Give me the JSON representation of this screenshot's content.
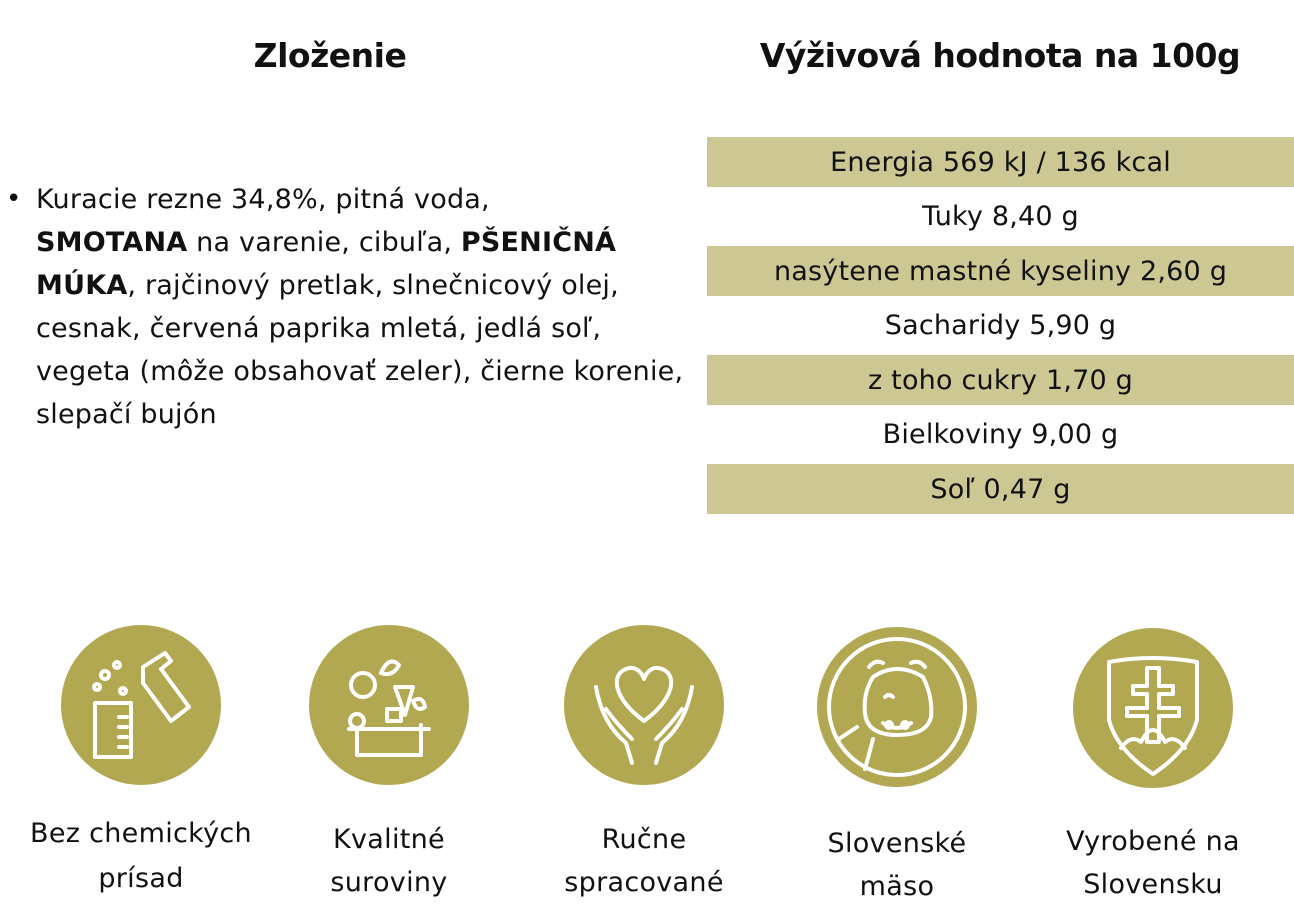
{
  "composition": {
    "title": "Zloženie",
    "parts": [
      "Kuracie rezne 34,8%, pitná voda,",
      " SMOTANA",
      " na varenie, cibuľa, ",
      "PŠENIČNÁ MÚKA",
      ", rajčinový pretlak, slnečnicový olej, cesnak, červená paprika mletá, jedlá soľ, vegeta (môže obsahovať zeler), čierne korenie, slepačí bujón"
    ]
  },
  "nutrition": {
    "title": "Výživová hodnota na 100g",
    "rows": [
      "Energia 569 kJ / 136 kcal",
      "Tuky 8,40 g",
      "nasýtene mastné kyseliny 2,60 g",
      "Sacharidy 5,90 g",
      "z toho cukry 1,70 g",
      "Bielkoviny 9,00 g",
      "Soľ 0,47 g"
    ]
  },
  "badges": [
    {
      "icon": "lab-flask-icon",
      "label_line1": "Bez chemických",
      "label_line2": "prísad"
    },
    {
      "icon": "vegetables-crate-icon",
      "label_line1": "Kvalitné",
      "label_line2": "suroviny"
    },
    {
      "icon": "heart-hands-icon",
      "label_line1": "Ručne",
      "label_line2": "spracované"
    },
    {
      "icon": "cow-icon",
      "label_line1": "Slovenské",
      "label_line2": "mäso"
    },
    {
      "icon": "slovak-shield-icon",
      "label_line1": "Vyrobené na",
      "label_line2": "Slovensku"
    }
  ],
  "colors": {
    "accent": "#b3a852",
    "row_shade": "#cdc794"
  }
}
